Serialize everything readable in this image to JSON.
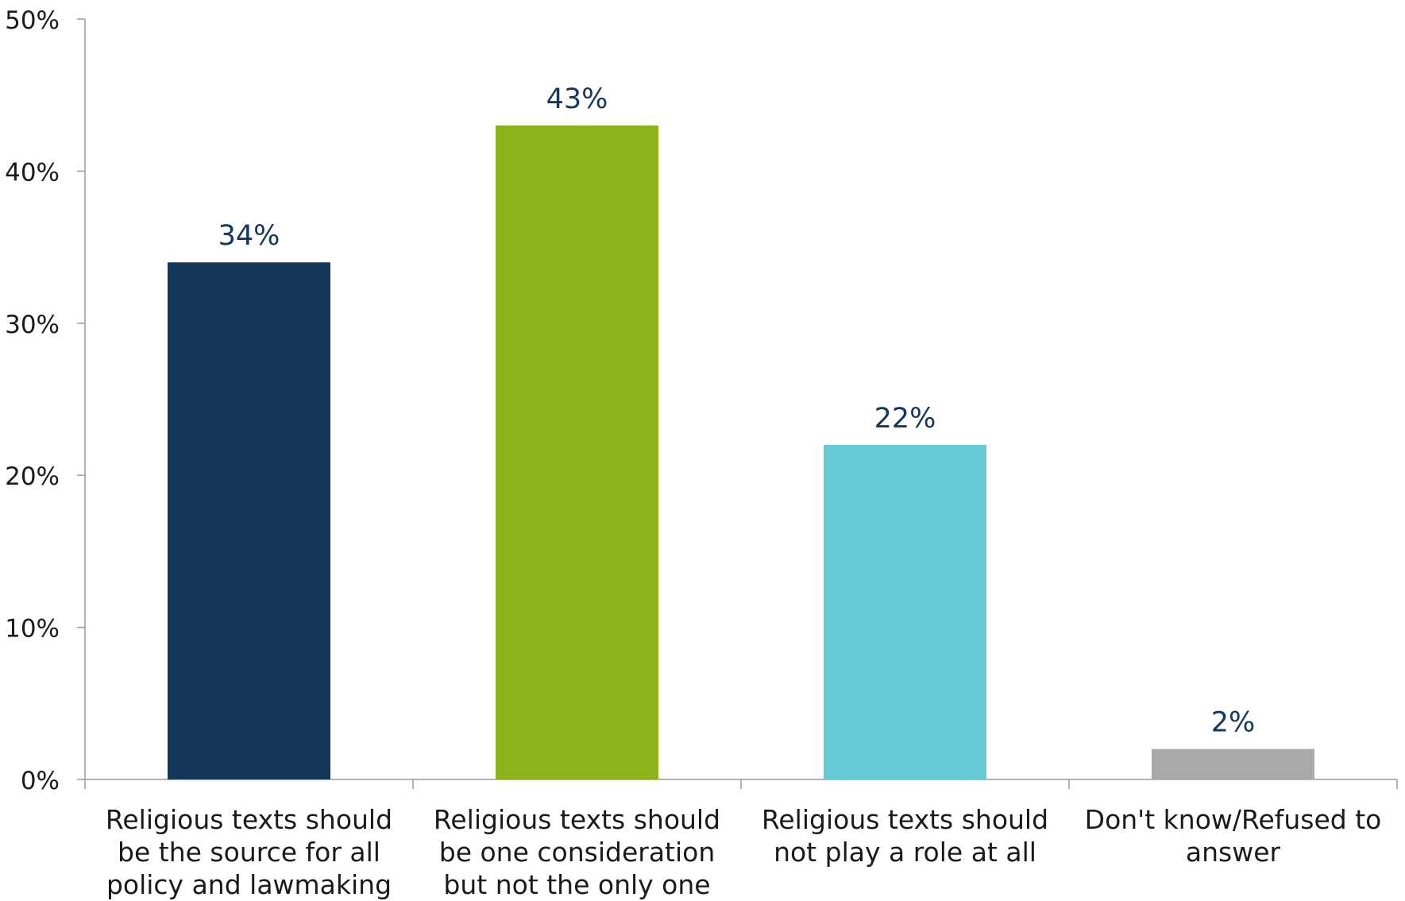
{
  "chart_data": {
    "type": "bar",
    "categories": [
      "Religious texts should be the source for all policy and lawmaking",
      "Religious texts should be one consideration but not the only one",
      "Religious texts should not play a role at all",
      "Don't know/Refused to answer"
    ],
    "category_lines": [
      [
        "Religious texts should",
        "be the source for all",
        "policy and lawmaking"
      ],
      [
        "Religious texts should",
        "be one consideration",
        "but not the only one"
      ],
      [
        "Religious texts should",
        "not play a role at all"
      ],
      [
        "Don't know/Refused to",
        "answer"
      ]
    ],
    "values": [
      34,
      43,
      22,
      2
    ],
    "data_labels": [
      "34%",
      "43%",
      "22%",
      "2%"
    ],
    "colors": [
      "#16375c",
      "#8ab41a",
      "#66c9d8",
      "#a9a9a9"
    ],
    "ylim": [
      0,
      50
    ],
    "yticks": [
      0,
      10,
      20,
      30,
      40,
      50
    ],
    "ytick_labels": [
      "0%",
      "10%",
      "20%",
      "30%",
      "40%",
      "50%"
    ],
    "title": "",
    "xlabel": "",
    "ylabel": "",
    "grid": false,
    "legend": "none"
  }
}
